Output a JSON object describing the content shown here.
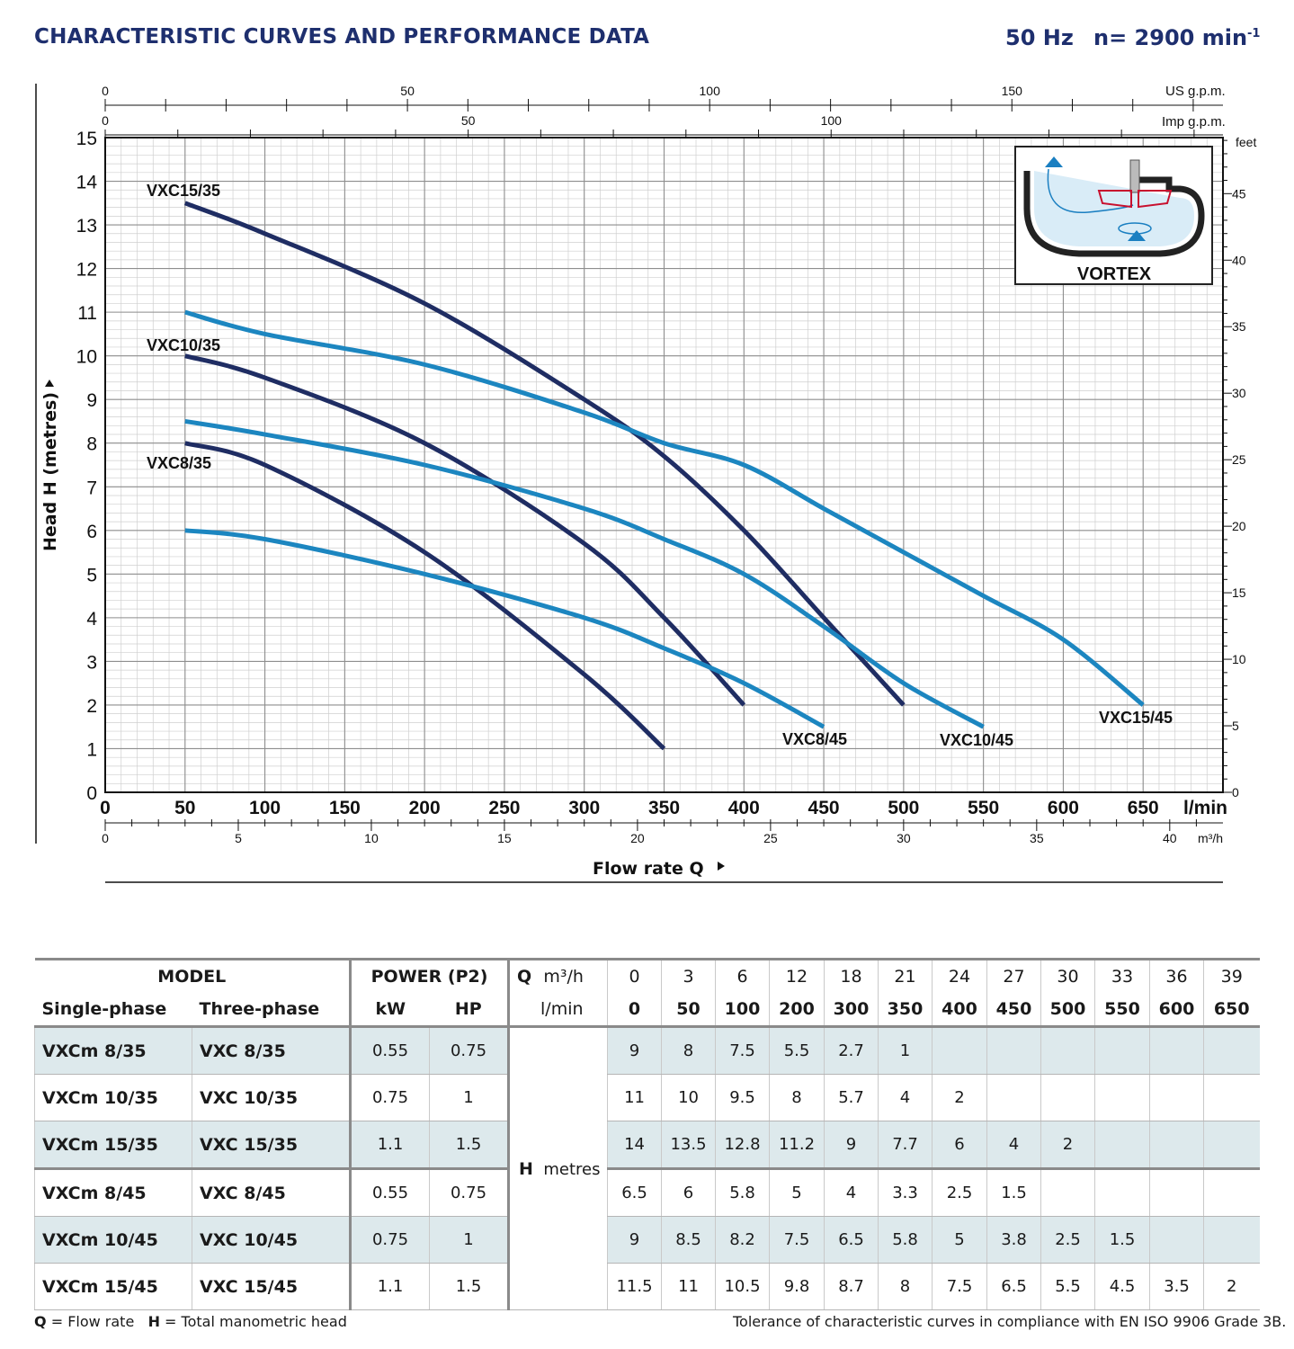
{
  "header": {
    "title": "CHARACTERISTIC CURVES AND PERFORMANCE DATA",
    "frequency": "50 Hz",
    "speed_prefix": "n= 2900 min",
    "speed_exp": "-1"
  },
  "chart_data": {
    "type": "line",
    "ylabel": "Head H  (metres)",
    "xlabel": "Flow rate Q",
    "xunit": "l/min",
    "ylim": [
      0,
      15
    ],
    "xlim": [
      0,
      700
    ],
    "grid": true,
    "y_ticks": [
      0,
      1,
      2,
      3,
      4,
      5,
      6,
      7,
      8,
      9,
      10,
      11,
      12,
      13,
      14,
      15
    ],
    "x_ticks": [
      0,
      50,
      100,
      150,
      200,
      250,
      300,
      350,
      400,
      450,
      500,
      550,
      600,
      650
    ],
    "top_axis_usgpm": {
      "label": "US g.p.m.",
      "ticks": [
        0,
        50,
        100,
        150
      ]
    },
    "top_axis_impgpm": {
      "label": "Imp g.p.m.",
      "ticks": [
        0,
        50,
        100
      ]
    },
    "bottom_axis_m3h": {
      "label": "m³/h",
      "ticks": [
        0,
        5,
        10,
        15,
        20,
        25,
        30,
        35,
        40
      ]
    },
    "right_axis_feet": {
      "label": "feet",
      "ticks": [
        0,
        5,
        10,
        15,
        20,
        25,
        30,
        35,
        40,
        45
      ]
    },
    "inset_label": "VORTEX",
    "series": [
      {
        "name": "VXC8/35",
        "color": "#1f2d63",
        "x": [
          50,
          100,
          200,
          300,
          350
        ],
        "y": [
          8,
          7.5,
          5.5,
          2.7,
          1
        ]
      },
      {
        "name": "VXC10/35",
        "color": "#1f2d63",
        "x": [
          50,
          100,
          200,
          300,
          350,
          400
        ],
        "y": [
          10,
          9.5,
          8,
          5.7,
          4,
          2
        ]
      },
      {
        "name": "VXC15/35",
        "color": "#1f2d63",
        "x": [
          50,
          100,
          200,
          300,
          350,
          400,
          450,
          500
        ],
        "y": [
          13.5,
          12.8,
          11.2,
          9,
          7.7,
          6,
          4,
          2
        ]
      },
      {
        "name": "VXC8/45",
        "color": "#1c86c0",
        "x": [
          50,
          100,
          200,
          300,
          350,
          400,
          450
        ],
        "y": [
          6,
          5.8,
          5,
          4,
          3.3,
          2.5,
          1.5
        ]
      },
      {
        "name": "VXC10/45",
        "color": "#1c86c0",
        "x": [
          50,
          100,
          200,
          300,
          350,
          400,
          450,
          500,
          550
        ],
        "y": [
          8.5,
          8.2,
          7.5,
          6.5,
          5.8,
          5,
          3.8,
          2.5,
          1.5
        ]
      },
      {
        "name": "VXC15/45",
        "color": "#1c86c0",
        "x": [
          50,
          100,
          200,
          300,
          350,
          400,
          450,
          500,
          550,
          600,
          650
        ],
        "y": [
          11,
          10.5,
          9.8,
          8.7,
          8,
          7.5,
          6.5,
          5.5,
          4.5,
          3.5,
          2
        ]
      }
    ]
  },
  "table": {
    "h_model": "MODEL",
    "h_power": "POWER (P2)",
    "h_q": "Q",
    "h_m3h": "m³/h",
    "h_lmin": "l/min",
    "h_single": "Single-phase",
    "h_three": "Three-phase",
    "h_kw": "kW",
    "h_hp": "HP",
    "h_metres_h": "H",
    "h_metres": "metres",
    "q_m3h": [
      "0",
      "3",
      "6",
      "12",
      "18",
      "21",
      "24",
      "27",
      "30",
      "33",
      "36",
      "39"
    ],
    "q_lmin": [
      "0",
      "50",
      "100",
      "200",
      "300",
      "350",
      "400",
      "450",
      "500",
      "550",
      "600",
      "650"
    ],
    "rows": [
      {
        "single": "VXCm 8/35",
        "three": "VXC 8/35",
        "kw": "0.55",
        "hp": "0.75",
        "h": [
          "9",
          "8",
          "7.5",
          "5.5",
          "2.7",
          "1",
          "",
          "",
          "",
          "",
          "",
          ""
        ]
      },
      {
        "single": "VXCm 10/35",
        "three": "VXC 10/35",
        "kw": "0.75",
        "hp": "1",
        "h": [
          "11",
          "10",
          "9.5",
          "8",
          "5.7",
          "4",
          "2",
          "",
          "",
          "",
          "",
          ""
        ]
      },
      {
        "single": "VXCm 15/35",
        "three": "VXC 15/35",
        "kw": "1.1",
        "hp": "1.5",
        "h": [
          "14",
          "13.5",
          "12.8",
          "11.2",
          "9",
          "7.7",
          "6",
          "4",
          "2",
          "",
          "",
          ""
        ]
      },
      {
        "single": "VXCm 8/45",
        "three": "VXC 8/45",
        "kw": "0.55",
        "hp": "0.75",
        "h": [
          "6.5",
          "6",
          "5.8",
          "5",
          "4",
          "3.3",
          "2.5",
          "1.5",
          "",
          "",
          "",
          ""
        ]
      },
      {
        "single": "VXCm 10/45",
        "three": "VXC 10/45",
        "kw": "0.75",
        "hp": "1",
        "h": [
          "9",
          "8.5",
          "8.2",
          "7.5",
          "6.5",
          "5.8",
          "5",
          "3.8",
          "2.5",
          "1.5",
          "",
          ""
        ]
      },
      {
        "single": "VXCm 15/45",
        "three": "VXC 15/45",
        "kw": "1.1",
        "hp": "1.5",
        "h": [
          "11.5",
          "11",
          "10.5",
          "9.8",
          "8.7",
          "8",
          "7.5",
          "6.5",
          "5.5",
          "4.5",
          "3.5",
          "2"
        ]
      }
    ]
  },
  "footer": {
    "legend_q": "Q",
    "legend_q_text": " = Flow rate",
    "legend_h": "H",
    "legend_h_text": " = Total manometric head",
    "tolerance": "Tolerance of characteristic curves in compliance with EN ISO 9906 Grade 3B."
  }
}
